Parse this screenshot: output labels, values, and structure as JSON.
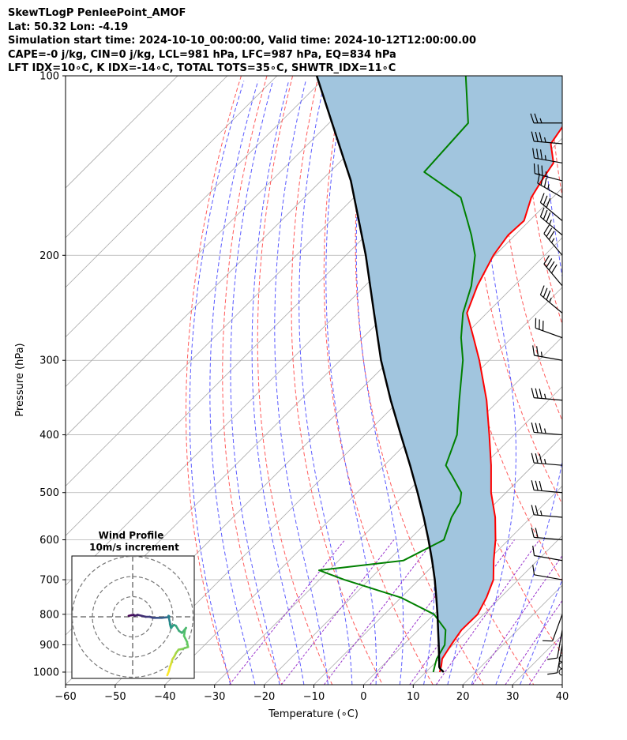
{
  "header": {
    "line1": "SkewTLogP PenleePoint_AMOF",
    "line2": "Lat: 50.32   Lon: -4.19",
    "line3": "Simulation start time: 2024-10-10_00:00:00, Valid time: 2024-10-12T12:00:00.00",
    "line4": "CAPE=-0 j/kg, CIN=0 j/kg, LCL=981 hPa, LFC=987 hPa, EQ=834 hPa",
    "line5": "LFT IDX=10∘C, K IDX=-14∘C, TOTAL TOTS=35∘C, SHWTR_IDX=11∘C"
  },
  "chart_data": [
    {
      "type": "line",
      "subtype": "skew-T log-P diagram",
      "xlabel": "Temperature (∘C)",
      "ylabel": "Pressure (hPa)",
      "xlim": [
        -60,
        40
      ],
      "ylim_hpa": [
        1050,
        100
      ],
      "y_scale": "log",
      "grid": true,
      "x_ticks": [
        "−60",
        "−50",
        "−40",
        "−30",
        "−20",
        "−10",
        "0",
        "10",
        "20",
        "30",
        "40"
      ],
      "y_ticks": [
        "100",
        "200",
        "300",
        "400",
        "500",
        "600",
        "700",
        "800",
        "900",
        "1000"
      ],
      "y_tick_values": [
        100,
        200,
        300,
        400,
        500,
        600,
        700,
        800,
        900,
        1000
      ],
      "colors": {
        "temperature": "#ff0000",
        "dewpoint": "#008000",
        "parcel": "#000000",
        "cape_fill": "#a1c5de",
        "dry_adiabats": "#ff5a5a",
        "moist_adiabats": "#5a5aff",
        "mixing_ratio": "#9933cc",
        "isotherms": "#a9a9a9"
      },
      "series": [
        {
          "role": "temperature",
          "p": [
            1000,
            975,
            950,
            900,
            850,
            800,
            750,
            700,
            650,
            600,
            550,
            500,
            450,
            400,
            350,
            300,
            275,
            250,
            225,
            200,
            185,
            175,
            160,
            150,
            140,
            130,
            120,
            110,
            100
          ],
          "t": [
            12.8,
            11.8,
            10.6,
            9.6,
            8.7,
            8.8,
            7.2,
            5.0,
            1.2,
            -2.6,
            -7.2,
            -13.0,
            -18.5,
            -25.0,
            -32.5,
            -42.0,
            -47.7,
            -54.0,
            -57.4,
            -60.3,
            -61.4,
            -61.1,
            -64.3,
            -65.6,
            -66.8,
            -71.2,
            -72.5,
            -74.2,
            -76.0
          ]
        },
        {
          "role": "dewpoint",
          "p": [
            1000,
            975,
            950,
            900,
            850,
            800,
            750,
            700,
            675,
            650,
            600,
            550,
            520,
            500,
            470,
            450,
            400,
            350,
            300,
            275,
            250,
            225,
            200,
            185,
            175,
            160,
            145,
            120,
            100
          ],
          "td": [
            11.5,
            10.5,
            9.5,
            8.3,
            5.5,
            0.0,
            -10.0,
            -25.0,
            -32.0,
            -17.0,
            -13.0,
            -16.0,
            -17.2,
            -19.0,
            -24.0,
            -27.6,
            -31.5,
            -38.0,
            -45.3,
            -50.2,
            -54.8,
            -58.6,
            -64.0,
            -68.8,
            -72.5,
            -78.5,
            -91.0,
            -92.0,
            -102.0
          ]
        },
        {
          "role": "parcel",
          "p": [
            1000,
            987,
            981,
            950,
            900,
            850,
            800,
            750,
            700,
            650,
            600,
            550,
            500,
            450,
            400,
            350,
            300,
            250,
            200,
            150,
            100
          ],
          "t": [
            13.6,
            12.2,
            11.7,
            10.0,
            7.1,
            4.0,
            0.7,
            -2.9,
            -6.8,
            -11.2,
            -16.1,
            -21.6,
            -27.8,
            -34.8,
            -42.8,
            -51.8,
            -61.8,
            -72.7,
            -86.0,
            -104.0,
            -132.0
          ]
        }
      ],
      "wind_barbs": {
        "p": [
          1000,
          975,
          950,
          900,
          850,
          800,
          700,
          650,
          600,
          550,
          500,
          450,
          400,
          350,
          300,
          275,
          250,
          225,
          200,
          185,
          175,
          160,
          150,
          140,
          130,
          120
        ],
        "speed_kt": [
          0,
          0,
          0,
          10,
          10,
          10,
          10,
          10,
          20,
          25,
          30,
          35,
          35,
          35,
          25,
          30,
          35,
          40,
          35,
          35,
          30,
          35,
          35,
          35,
          35,
          25
        ],
        "direction_deg": [
          0,
          0,
          0,
          190,
          190,
          200,
          280,
          280,
          275,
          275,
          275,
          275,
          275,
          275,
          280,
          290,
          310,
          320,
          320,
          310,
          310,
          300,
          285,
          280,
          275,
          270
        ]
      }
    },
    {
      "type": "scatter",
      "subtype": "hodograph",
      "title": "Wind Profile",
      "subtitle": "10m/s increment",
      "rings_ms": [
        10,
        20,
        30
      ],
      "u_ms": [
        -2.0,
        -0.5,
        0.5,
        1.0,
        2.5,
        4.5,
        6.5,
        8.5,
        10.0,
        11.5,
        13.0,
        14.5,
        16.5,
        17.5,
        18.0,
        18.2,
        17.8,
        18.8,
        19.2,
        18.5,
        19.0,
        20.5,
        21.5,
        23.0,
        24.5,
        26.5,
        26.0,
        25.5,
        27.0,
        27.5,
        24.5,
        22.8,
        21.5,
        20.8,
        19.8,
        19.2,
        18.5,
        18.0,
        17.2
      ],
      "v_ms": [
        0.5,
        0.8,
        1.0,
        0.5,
        1.0,
        0.5,
        0.0,
        0.0,
        -0.5,
        -0.5,
        -0.5,
        -0.5,
        -0.3,
        -0.2,
        0.0,
        0.2,
        0.5,
        -4.5,
        -5.5,
        -3.5,
        -5.5,
        -4.0,
        -4.5,
        -7.0,
        -8.0,
        -5.5,
        -6.5,
        -9.5,
        -12.5,
        -15.0,
        -16.0,
        -16.3,
        -18.0,
        -19.5,
        -21.0,
        -23.0,
        -25.0,
        -27.0,
        -29.0
      ]
    }
  ]
}
